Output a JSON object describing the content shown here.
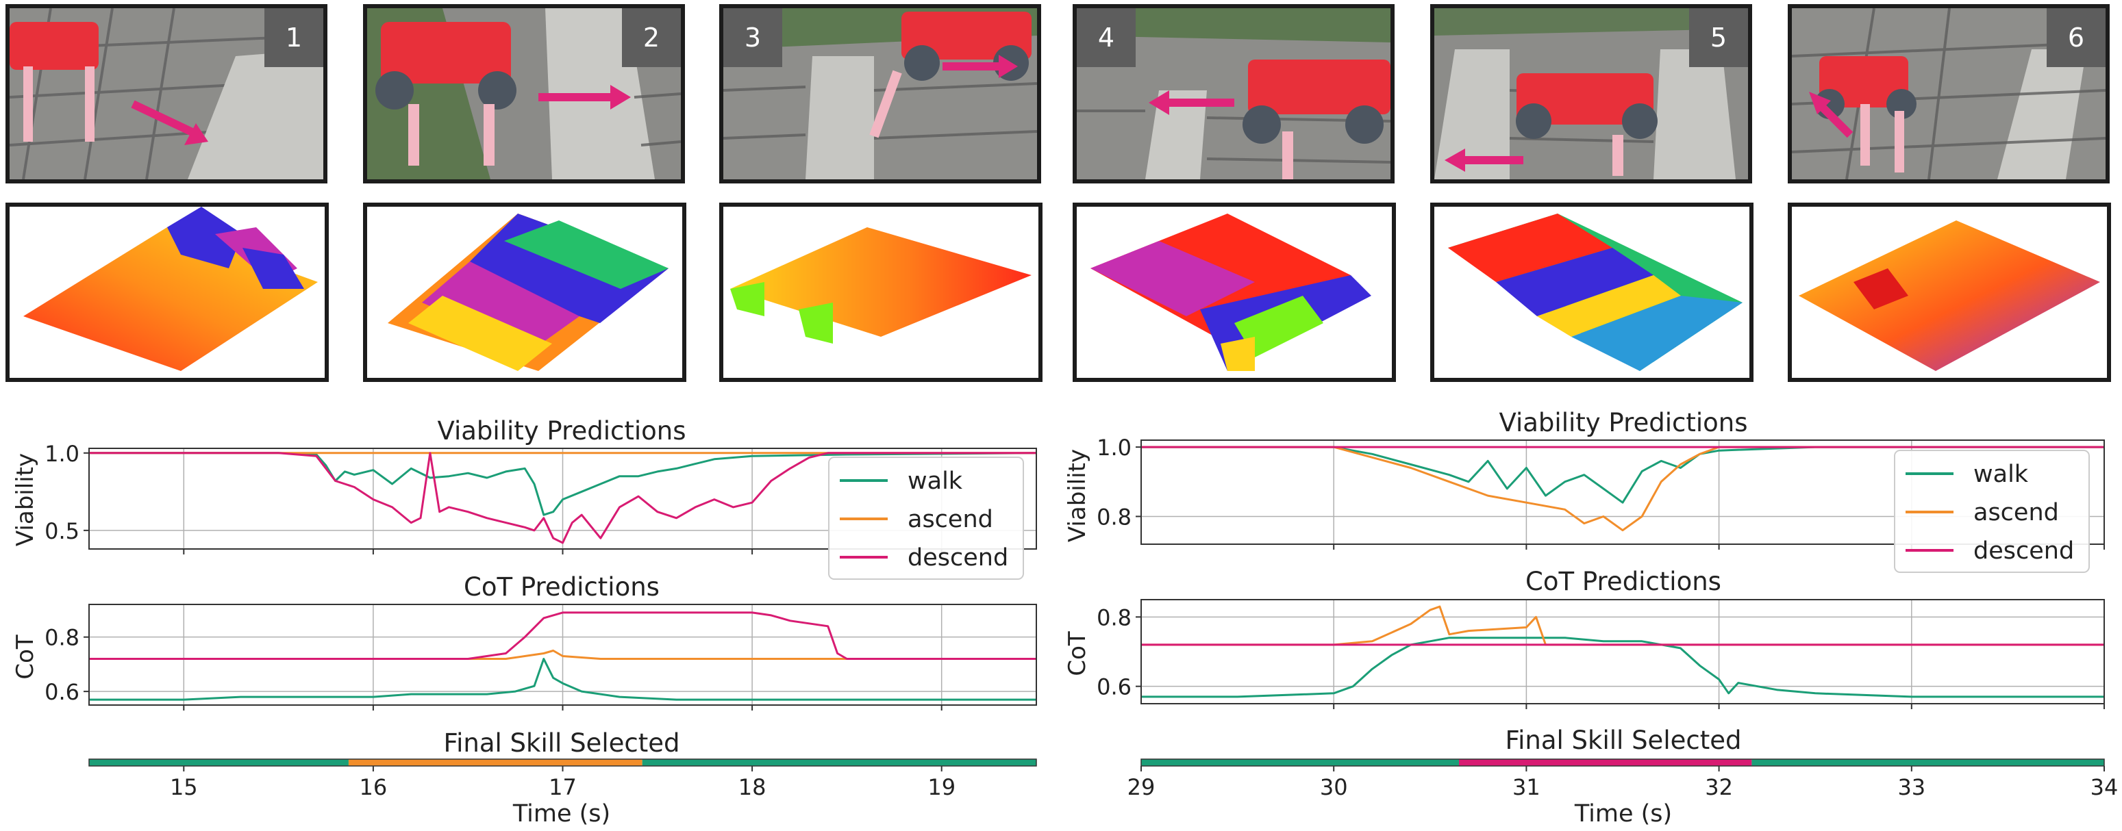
{
  "panels": [
    {
      "number": "1",
      "arrow": "down-right"
    },
    {
      "number": "2",
      "arrow": "right"
    },
    {
      "number": "3",
      "arrow": "right"
    },
    {
      "number": "4",
      "arrow": "left"
    },
    {
      "number": "5",
      "arrow": "left"
    },
    {
      "number": "6",
      "arrow": "up-left"
    }
  ],
  "colors": {
    "walk": "#1b9e77",
    "ascend": "#f28e2b",
    "descend": "#d81b72",
    "photo_arrow": "#e0257a",
    "robot": "#e8303a",
    "grid": "#b0b0b0"
  },
  "chart_data": [
    {
      "type": "line",
      "title": "Viability Predictions",
      "xlabel": "",
      "ylabel": "Viability",
      "xlim": [
        14.5,
        19.5
      ],
      "ylim": [
        0.38,
        1.03
      ],
      "yticks": [
        0.5,
        1.0
      ],
      "ytick_labels": [
        "0.5",
        "1.0"
      ],
      "xticks": [
        15,
        16,
        17,
        18,
        19
      ],
      "legend": [
        "walk",
        "ascend",
        "descend"
      ],
      "legend_position": "right",
      "series": [
        {
          "name": "walk",
          "x": [
            14.5,
            15.5,
            15.7,
            15.75,
            15.8,
            15.85,
            15.9,
            16.0,
            16.1,
            16.2,
            16.3,
            16.4,
            16.5,
            16.6,
            16.7,
            16.8,
            16.85,
            16.9,
            16.95,
            17.0,
            17.1,
            17.2,
            17.3,
            17.4,
            17.5,
            17.6,
            17.7,
            17.8,
            18.0,
            18.5,
            19.5
          ],
          "y": [
            1.0,
            1.0,
            0.99,
            0.92,
            0.82,
            0.88,
            0.86,
            0.89,
            0.8,
            0.9,
            0.84,
            0.85,
            0.87,
            0.84,
            0.88,
            0.9,
            0.8,
            0.6,
            0.62,
            0.7,
            0.75,
            0.8,
            0.85,
            0.85,
            0.88,
            0.9,
            0.93,
            0.96,
            0.98,
            0.99,
            1.0
          ]
        },
        {
          "name": "ascend",
          "x": [
            14.5,
            19.5
          ],
          "y": [
            1.0,
            1.0
          ]
        },
        {
          "name": "descend",
          "x": [
            14.5,
            15.5,
            15.7,
            15.8,
            15.9,
            16.0,
            16.1,
            16.2,
            16.25,
            16.3,
            16.35,
            16.4,
            16.5,
            16.6,
            16.7,
            16.8,
            16.85,
            16.9,
            16.95,
            17.0,
            17.05,
            17.1,
            17.2,
            17.3,
            17.4,
            17.5,
            17.6,
            17.7,
            17.8,
            17.9,
            18.0,
            18.1,
            18.2,
            18.3,
            18.4,
            19.5
          ],
          "y": [
            1.0,
            1.0,
            0.98,
            0.82,
            0.78,
            0.7,
            0.65,
            0.55,
            0.58,
            1.0,
            0.62,
            0.65,
            0.62,
            0.58,
            0.55,
            0.52,
            0.5,
            0.58,
            0.45,
            0.42,
            0.55,
            0.6,
            0.45,
            0.65,
            0.72,
            0.62,
            0.58,
            0.65,
            0.7,
            0.65,
            0.68,
            0.82,
            0.9,
            0.97,
            1.0,
            1.0
          ]
        }
      ]
    },
    {
      "type": "line",
      "title": "CoT Predictions",
      "xlabel": "",
      "ylabel": "CoT",
      "xlim": [
        14.5,
        19.5
      ],
      "ylim": [
        0.55,
        0.92
      ],
      "yticks": [
        0.6,
        0.8
      ],
      "ytick_labels": [
        "0.6",
        "0.8"
      ],
      "xticks": [
        15,
        16,
        17,
        18,
        19
      ],
      "series": [
        {
          "name": "walk",
          "x": [
            14.5,
            15.0,
            15.3,
            15.5,
            15.8,
            16.0,
            16.2,
            16.4,
            16.6,
            16.75,
            16.85,
            16.9,
            16.95,
            17.0,
            17.1,
            17.3,
            17.6,
            18.0,
            18.5,
            19.5
          ],
          "y": [
            0.57,
            0.57,
            0.58,
            0.58,
            0.58,
            0.58,
            0.59,
            0.59,
            0.59,
            0.6,
            0.62,
            0.72,
            0.65,
            0.63,
            0.6,
            0.58,
            0.57,
            0.57,
            0.57,
            0.57
          ]
        },
        {
          "name": "ascend",
          "x": [
            14.5,
            16.7,
            16.8,
            16.9,
            16.95,
            17.0,
            17.2,
            19.5
          ],
          "y": [
            0.72,
            0.72,
            0.73,
            0.74,
            0.75,
            0.73,
            0.72,
            0.72
          ]
        },
        {
          "name": "descend",
          "x": [
            14.5,
            16.5,
            16.7,
            16.8,
            16.9,
            17.0,
            17.2,
            17.6,
            18.0,
            18.1,
            18.2,
            18.3,
            18.4,
            18.45,
            18.5,
            18.6,
            18.8,
            19.5
          ],
          "y": [
            0.72,
            0.72,
            0.74,
            0.8,
            0.87,
            0.89,
            0.89,
            0.89,
            0.89,
            0.88,
            0.86,
            0.85,
            0.84,
            0.74,
            0.72,
            0.72,
            0.72,
            0.72
          ]
        }
      ]
    },
    {
      "type": "bar",
      "title": "Final Skill Selected",
      "xlabel": "Time (s)",
      "xlim": [
        14.5,
        19.5
      ],
      "xticks": [
        15,
        16,
        17,
        18,
        19
      ],
      "xtick_labels": [
        "15",
        "16",
        "17",
        "18",
        "19"
      ],
      "segments": [
        {
          "skill": "walk",
          "start": 14.5,
          "end": 15.87
        },
        {
          "skill": "ascend",
          "start": 15.87,
          "end": 17.42
        },
        {
          "skill": "walk",
          "start": 17.42,
          "end": 19.5
        }
      ]
    },
    {
      "type": "line",
      "title": "Viability Predictions",
      "xlabel": "",
      "ylabel": "Viability",
      "xlim": [
        29,
        34
      ],
      "ylim": [
        0.72,
        1.02
      ],
      "yticks": [
        0.8,
        1.0
      ],
      "ytick_labels": [
        "0.8",
        "1.0"
      ],
      "xticks": [
        30,
        31,
        32,
        33,
        34
      ],
      "legend": [
        "walk",
        "ascend",
        "descend"
      ],
      "legend_position": "right",
      "series": [
        {
          "name": "walk",
          "x": [
            29.0,
            30.0,
            30.2,
            30.4,
            30.6,
            30.7,
            30.8,
            30.9,
            31.0,
            31.1,
            31.2,
            31.3,
            31.4,
            31.5,
            31.6,
            31.7,
            31.8,
            31.9,
            32.0,
            32.5,
            33.0,
            34.0
          ],
          "y": [
            1.0,
            1.0,
            0.98,
            0.95,
            0.92,
            0.9,
            0.96,
            0.88,
            0.94,
            0.86,
            0.9,
            0.92,
            0.88,
            0.84,
            0.93,
            0.96,
            0.94,
            0.98,
            0.99,
            1.0,
            1.0,
            1.0
          ]
        },
        {
          "name": "ascend",
          "x": [
            29.0,
            30.0,
            30.2,
            30.4,
            30.6,
            30.8,
            31.0,
            31.2,
            31.3,
            31.4,
            31.5,
            31.6,
            31.7,
            31.8,
            31.9,
            32.0,
            34.0
          ],
          "y": [
            1.0,
            1.0,
            0.97,
            0.94,
            0.9,
            0.86,
            0.84,
            0.82,
            0.78,
            0.8,
            0.76,
            0.8,
            0.9,
            0.95,
            0.98,
            1.0,
            1.0
          ]
        },
        {
          "name": "descend",
          "x": [
            29.0,
            34.0
          ],
          "y": [
            1.0,
            1.0
          ]
        }
      ]
    },
    {
      "type": "line",
      "title": "CoT Predictions",
      "xlabel": "",
      "ylabel": "CoT",
      "xlim": [
        29,
        34
      ],
      "ylim": [
        0.55,
        0.85
      ],
      "yticks": [
        0.6,
        0.8
      ],
      "ytick_labels": [
        "0.6",
        "0.8"
      ],
      "xticks": [
        30,
        31,
        32,
        33,
        34
      ],
      "series": [
        {
          "name": "walk",
          "x": [
            29.0,
            29.5,
            30.0,
            30.1,
            30.2,
            30.3,
            30.4,
            30.5,
            30.6,
            30.8,
            31.0,
            31.2,
            31.4,
            31.6,
            31.8,
            31.9,
            32.0,
            32.05,
            32.1,
            32.3,
            32.5,
            33.0,
            34.0
          ],
          "y": [
            0.57,
            0.57,
            0.58,
            0.6,
            0.65,
            0.69,
            0.72,
            0.73,
            0.74,
            0.74,
            0.74,
            0.74,
            0.73,
            0.73,
            0.71,
            0.66,
            0.62,
            0.58,
            0.61,
            0.59,
            0.58,
            0.57,
            0.57
          ]
        },
        {
          "name": "ascend",
          "x": [
            29.0,
            30.0,
            30.2,
            30.4,
            30.5,
            30.55,
            30.6,
            30.7,
            31.0,
            31.05,
            31.1,
            31.2,
            34.0
          ],
          "y": [
            0.72,
            0.72,
            0.73,
            0.78,
            0.82,
            0.83,
            0.75,
            0.76,
            0.77,
            0.8,
            0.72,
            0.72,
            0.72
          ]
        },
        {
          "name": "descend",
          "x": [
            29.0,
            34.0
          ],
          "y": [
            0.72,
            0.72
          ]
        }
      ]
    },
    {
      "type": "bar",
      "title": "Final Skill Selected",
      "xlabel": "Time (s)",
      "xlim": [
        29,
        34
      ],
      "xticks": [
        29,
        30,
        31,
        32,
        33,
        34
      ],
      "xtick_labels": [
        "29",
        "30",
        "31",
        "32",
        "33",
        "34"
      ],
      "segments": [
        {
          "skill": "walk",
          "start": 29.0,
          "end": 30.65
        },
        {
          "skill": "descend",
          "start": 30.65,
          "end": 32.17
        },
        {
          "skill": "walk",
          "start": 32.17,
          "end": 34.0
        }
      ]
    }
  ]
}
